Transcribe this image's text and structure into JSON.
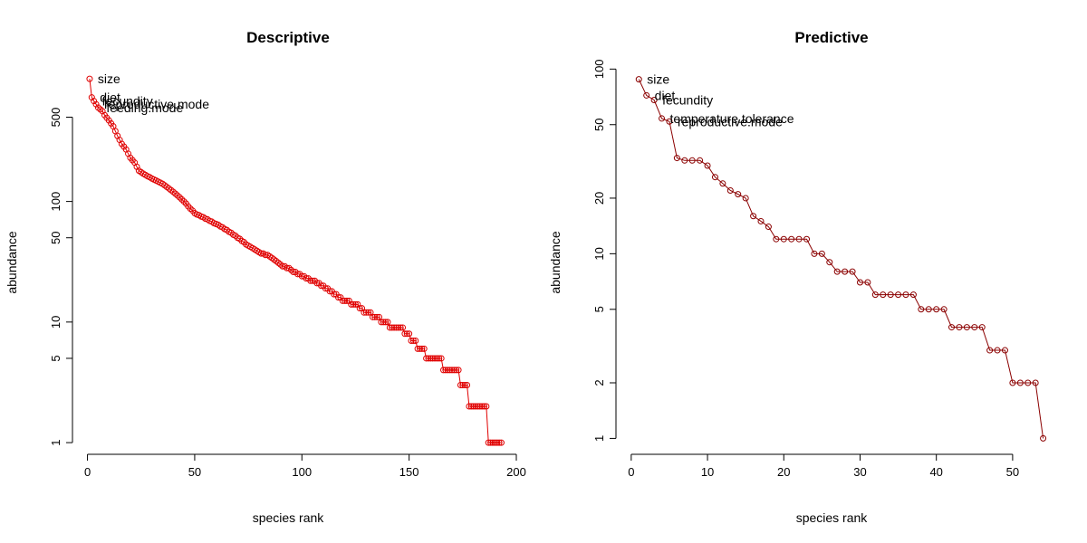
{
  "chart_data": [
    {
      "type": "line",
      "title": "Descriptive",
      "xlabel": "species rank",
      "ylabel": "abundance",
      "log_y": true,
      "xlim": [
        -7,
        200
      ],
      "ylim": [
        0.8,
        1350
      ],
      "xticks": [
        0,
        50,
        100,
        150,
        200
      ],
      "xtick_labels": [
        "0",
        "50",
        "100",
        "150",
        "200"
      ],
      "yticks": [
        1,
        5,
        10,
        50,
        100,
        500
      ],
      "ytick_labels": [
        "1",
        "5",
        "10",
        "50",
        "100",
        "500"
      ],
      "point_color": "#e00000",
      "line_color": "#e00000",
      "anchors": [
        [
          1,
          1040
        ],
        [
          2,
          730
        ],
        [
          3,
          680
        ],
        [
          4,
          640
        ],
        [
          5,
          600
        ],
        [
          6,
          580
        ],
        [
          7,
          560
        ],
        [
          8,
          520
        ],
        [
          10,
          470
        ],
        [
          12,
          420
        ],
        [
          14,
          350
        ],
        [
          16,
          300
        ],
        [
          18,
          270
        ],
        [
          20,
          230
        ],
        [
          22,
          210
        ],
        [
          24,
          180
        ],
        [
          26,
          170
        ],
        [
          30,
          155
        ],
        [
          35,
          140
        ],
        [
          40,
          120
        ],
        [
          45,
          100
        ],
        [
          50,
          80
        ],
        [
          55,
          72
        ],
        [
          60,
          65
        ],
        [
          65,
          58
        ],
        [
          70,
          50
        ],
        [
          75,
          43
        ],
        [
          80,
          38
        ],
        [
          85,
          35
        ],
        [
          90,
          30
        ],
        [
          95,
          27
        ],
        [
          100,
          24
        ],
        [
          105,
          22
        ],
        [
          110,
          20
        ],
        [
          115,
          17
        ],
        [
          120,
          15
        ],
        [
          125,
          14
        ],
        [
          130,
          12
        ],
        [
          135,
          11
        ],
        [
          140,
          9.5
        ],
        [
          145,
          9
        ],
        [
          150,
          8
        ],
        [
          152,
          7
        ],
        [
          155,
          6
        ],
        [
          160,
          5
        ],
        [
          165,
          4.5
        ],
        [
          172,
          4
        ],
        [
          175,
          3
        ],
        [
          180,
          2
        ],
        [
          186,
          2
        ],
        [
          187,
          1
        ],
        [
          193,
          1
        ]
      ],
      "annotations": [
        {
          "label": "size",
          "x": 1,
          "y": 1040
        },
        {
          "label": "diet",
          "x": 2,
          "y": 730
        },
        {
          "label": "fecundity",
          "x": 3,
          "y": 680
        },
        {
          "label": "reproductive.mode",
          "x": 4,
          "y": 640
        },
        {
          "label": "feeding.mode",
          "x": 5,
          "y": 600
        }
      ]
    },
    {
      "type": "line",
      "title": "Predictive",
      "xlabel": "species rank",
      "ylabel": "abundance",
      "log_y": true,
      "xlim": [
        -2,
        55
      ],
      "ylim": [
        0.82,
        105
      ],
      "xticks": [
        0,
        10,
        20,
        30,
        40,
        50
      ],
      "xtick_labels": [
        "0",
        "10",
        "20",
        "30",
        "40",
        "50"
      ],
      "yticks": [
        1,
        2,
        5,
        10,
        20,
        50,
        100
      ],
      "ytick_labels": [
        "1",
        "2",
        "5",
        "10",
        "20",
        "50",
        "100"
      ],
      "point_color": "#8b0000",
      "line_color": "#8b0000",
      "x": [
        1,
        2,
        3,
        4,
        5,
        6,
        7,
        8,
        9,
        10,
        11,
        12,
        13,
        14,
        15,
        16,
        17,
        18,
        19,
        20,
        21,
        22,
        23,
        24,
        25,
        26,
        27,
        28,
        29,
        30,
        31,
        32,
        33,
        34,
        35,
        36,
        37,
        38,
        39,
        40,
        41,
        42,
        43,
        44,
        45,
        46,
        47,
        48,
        49,
        50,
        51,
        52,
        53,
        54
      ],
      "y": [
        88,
        72,
        68,
        54,
        52,
        33,
        32,
        32,
        32,
        30,
        26,
        24,
        22,
        21,
        20,
        16,
        15,
        14,
        12,
        12,
        12,
        12,
        12,
        10,
        10,
        9,
        8,
        8,
        8,
        7,
        7,
        6,
        6,
        6,
        6,
        6,
        6,
        5,
        5,
        5,
        5,
        4,
        4,
        4,
        4,
        4,
        3,
        3,
        3,
        2,
        2,
        2,
        2,
        1
      ],
      "annotations": [
        {
          "label": "size",
          "x": 1,
          "y": 88
        },
        {
          "label": "diet",
          "x": 2,
          "y": 72
        },
        {
          "label": "fecundity",
          "x": 3,
          "y": 68
        },
        {
          "label": "temperature.tolerance",
          "x": 4,
          "y": 54
        },
        {
          "label": "reproductive.mode",
          "x": 5,
          "y": 52
        }
      ]
    }
  ]
}
